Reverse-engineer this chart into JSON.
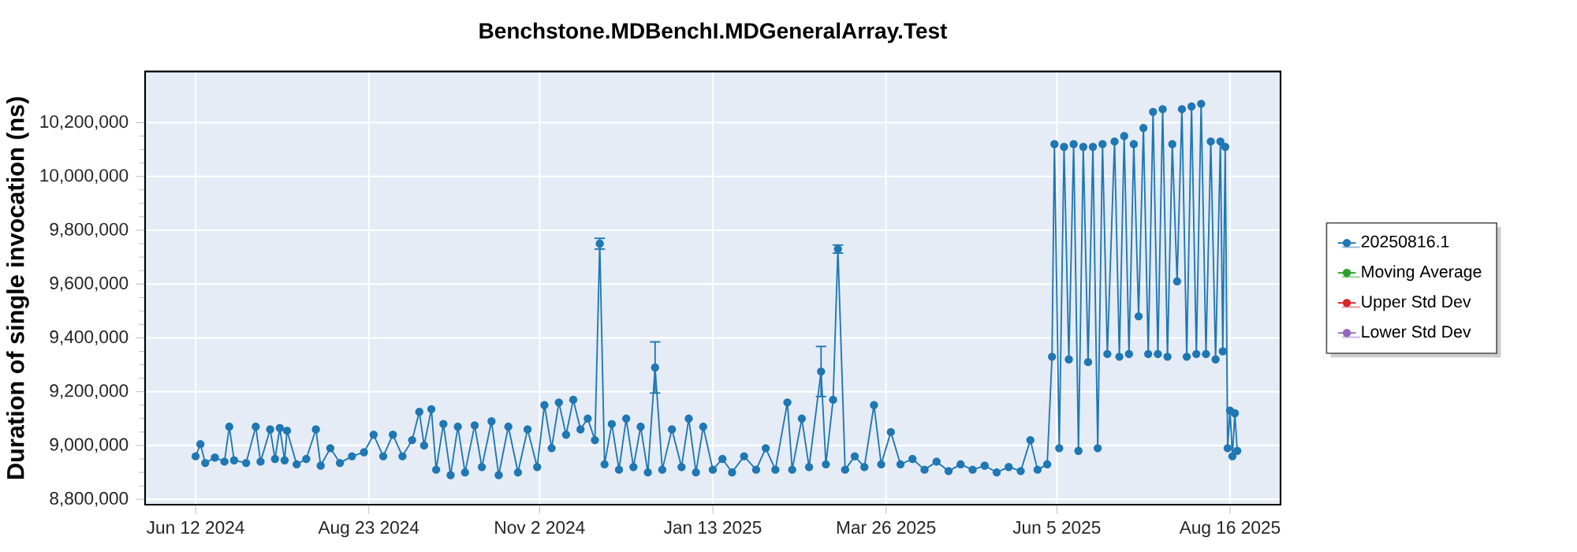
{
  "chart_data": {
    "type": "line",
    "title": "Benchstone.MDBenchI.MDGeneralArray.Test",
    "ylabel": "Duration of single invocation (ns)",
    "x": [
      "2024-06-12",
      "2024-06-14",
      "2024-06-16",
      "2024-06-20",
      "2024-06-24",
      "2024-06-26",
      "2024-06-28",
      "2024-07-03",
      "2024-07-07",
      "2024-07-09",
      "2024-07-13",
      "2024-07-15",
      "2024-07-17",
      "2024-07-19",
      "2024-07-20",
      "2024-07-24",
      "2024-07-28",
      "2024-08-01",
      "2024-08-03",
      "2024-08-07",
      "2024-08-11",
      "2024-08-16",
      "2024-08-21",
      "2024-08-25",
      "2024-08-29",
      "2024-09-02",
      "2024-09-06",
      "2024-09-10",
      "2024-09-13",
      "2024-09-15",
      "2024-09-18",
      "2024-09-20",
      "2024-09-23",
      "2024-09-26",
      "2024-09-29",
      "2024-10-02",
      "2024-10-06",
      "2024-10-09",
      "2024-10-13",
      "2024-10-16",
      "2024-10-20",
      "2024-10-24",
      "2024-10-28",
      "2024-11-01",
      "2024-11-04",
      "2024-11-07",
      "2024-11-10",
      "2024-11-13",
      "2024-11-16",
      "2024-11-19",
      "2024-11-22",
      "2024-11-25",
      "2024-11-27",
      "2024-11-29",
      "2024-12-02",
      "2024-12-05",
      "2024-12-08",
      "2024-12-11",
      "2024-12-14",
      "2024-12-17",
      "2024-12-20",
      "2024-12-23",
      "2024-12-27",
      "2024-12-31",
      "2025-01-03",
      "2025-01-06",
      "2025-01-09",
      "2025-01-13",
      "2025-01-17",
      "2025-01-21",
      "2025-01-26",
      "2025-01-31",
      "2025-02-04",
      "2025-02-08",
      "2025-02-13",
      "2025-02-15",
      "2025-02-19",
      "2025-02-22",
      "2025-02-27",
      "2025-03-01",
      "2025-03-04",
      "2025-03-06",
      "2025-03-09",
      "2025-03-13",
      "2025-03-17",
      "2025-03-21",
      "2025-03-24",
      "2025-03-28",
      "2025-04-01",
      "2025-04-06",
      "2025-04-11",
      "2025-04-16",
      "2025-04-21",
      "2025-04-26",
      "2025-05-01",
      "2025-05-06",
      "2025-05-11",
      "2025-05-16",
      "2025-05-21",
      "2025-05-25",
      "2025-05-28",
      "2025-06-01",
      "2025-06-03",
      "2025-06-04",
      "2025-06-06",
      "2025-06-08",
      "2025-06-10",
      "2025-06-12",
      "2025-06-14",
      "2025-06-16",
      "2025-06-18",
      "2025-06-20",
      "2025-06-22",
      "2025-06-24",
      "2025-06-26",
      "2025-06-29",
      "2025-07-01",
      "2025-07-03",
      "2025-07-05",
      "2025-07-07",
      "2025-07-09",
      "2025-07-11",
      "2025-07-13",
      "2025-07-15",
      "2025-07-17",
      "2025-07-19",
      "2025-07-21",
      "2025-07-23",
      "2025-07-25",
      "2025-07-27",
      "2025-07-29",
      "2025-07-31",
      "2025-08-02",
      "2025-08-04",
      "2025-08-06",
      "2025-08-08",
      "2025-08-10",
      "2025-08-12",
      "2025-08-13",
      "2025-08-14",
      "2025-08-15",
      "2025-08-16",
      "2025-08-17",
      "2025-08-18",
      "2025-08-19"
    ],
    "series": [
      {
        "name": "20250816.1",
        "color": "#1f77b4",
        "values": [
          8960000,
          9005000,
          8935000,
          8955000,
          8940000,
          9070000,
          8945000,
          8935000,
          9070000,
          8940000,
          9060000,
          8950000,
          9065000,
          8945000,
          9055000,
          8930000,
          8950000,
          9060000,
          8925000,
          8990000,
          8935000,
          8960000,
          8975000,
          9040000,
          8960000,
          9040000,
          8960000,
          9020000,
          9125000,
          9000000,
          9135000,
          8910000,
          9080000,
          8890000,
          9070000,
          8900000,
          9075000,
          8920000,
          9090000,
          8890000,
          9070000,
          8900000,
          9060000,
          8920000,
          9150000,
          8990000,
          9160000,
          9040000,
          9170000,
          9060000,
          9100000,
          9020000,
          9750000,
          8930000,
          9080000,
          8910000,
          9100000,
          8920000,
          9070000,
          8900000,
          9290000,
          8910000,
          9060000,
          8920000,
          9100000,
          8900000,
          9070000,
          8910000,
          8950000,
          8900000,
          8960000,
          8910000,
          8990000,
          8910000,
          9160000,
          8910000,
          9100000,
          8920000,
          9275000,
          8930000,
          9170000,
          9730000,
          8910000,
          8960000,
          8920000,
          9150000,
          8930000,
          9050000,
          8930000,
          8950000,
          8910000,
          8940000,
          8905000,
          8930000,
          8910000,
          8925000,
          8900000,
          8920000,
          8905000,
          9020000,
          8910000,
          8930000,
          9330000,
          10120000,
          8990000,
          10110000,
          9320000,
          10120000,
          8980000,
          10110000,
          9310000,
          10110000,
          8990000,
          10120000,
          9340000,
          10130000,
          9330000,
          10150000,
          9340000,
          10120000,
          9480000,
          10180000,
          9340000,
          10240000,
          9340000,
          10250000,
          9330000,
          10120000,
          9610000,
          10250000,
          9330000,
          10260000,
          9340000,
          10270000,
          9340000,
          10130000,
          9320000,
          10130000,
          9350000,
          10110000,
          8990000,
          9130000,
          8960000,
          9120000,
          8980000
        ],
        "errors": [
          null,
          null,
          null,
          null,
          null,
          null,
          null,
          null,
          null,
          null,
          null,
          null,
          null,
          null,
          null,
          null,
          null,
          null,
          null,
          null,
          null,
          null,
          null,
          null,
          null,
          null,
          null,
          null,
          null,
          null,
          null,
          null,
          null,
          null,
          null,
          null,
          null,
          null,
          null,
          null,
          null,
          null,
          null,
          null,
          null,
          null,
          null,
          null,
          null,
          null,
          null,
          null,
          20000,
          null,
          null,
          null,
          null,
          null,
          null,
          null,
          95000,
          null,
          null,
          null,
          null,
          null,
          null,
          null,
          null,
          null,
          null,
          null,
          null,
          null,
          null,
          null,
          null,
          null,
          93000,
          null,
          null,
          15000,
          null,
          null,
          null,
          null,
          null,
          null,
          null,
          null,
          null,
          null,
          null,
          null,
          null,
          null,
          null,
          null,
          null,
          null,
          null,
          null,
          null,
          null,
          null,
          null,
          null,
          null,
          null,
          null,
          null,
          null,
          null,
          null,
          null,
          null,
          null,
          null,
          null,
          null,
          null,
          null,
          null,
          null,
          null,
          null,
          null,
          null,
          null,
          null,
          null,
          null,
          null,
          null,
          null,
          null,
          null,
          null,
          null,
          null,
          null,
          null,
          null,
          null,
          null
        ]
      },
      {
        "name": "Moving Average",
        "color": "#2ca02c",
        "values": [
          null,
          null,
          null,
          null,
          null,
          null,
          null,
          null,
          null,
          null,
          null,
          null,
          null,
          null,
          null,
          null,
          null,
          null,
          null,
          null,
          null,
          null,
          null,
          null,
          null,
          null,
          null,
          null,
          null,
          null,
          null,
          null,
          null,
          null,
          null,
          null,
          null,
          null,
          null,
          null,
          null,
          null,
          null,
          null,
          null,
          null,
          null,
          null,
          null,
          null,
          null,
          null,
          null,
          null,
          null,
          null,
          null,
          null,
          null,
          null,
          null,
          null,
          null,
          null,
          null,
          null,
          null,
          null,
          null,
          null,
          null,
          null,
          null,
          null,
          null,
          null,
          null,
          null,
          null,
          null,
          null,
          null,
          null,
          null,
          null,
          null,
          null,
          null,
          null,
          null,
          null,
          null,
          null,
          null,
          null,
          null,
          null,
          null,
          null,
          null,
          null,
          null,
          null,
          null,
          null,
          null,
          null,
          null,
          null,
          null,
          null,
          null,
          null,
          null,
          null,
          null,
          null,
          null,
          null,
          null,
          null,
          null,
          null,
          null,
          null,
          null,
          null,
          null,
          null,
          null,
          null,
          null,
          null,
          null,
          null,
          null,
          null,
          null,
          null,
          null,
          null,
          null,
          null,
          null,
          null
        ]
      },
      {
        "name": "Upper Std Dev",
        "color": "#d62728",
        "values": [
          null,
          null,
          null,
          null,
          null,
          null,
          null,
          null,
          null,
          null,
          null,
          null,
          null,
          null,
          null,
          null,
          null,
          null,
          null,
          null,
          null,
          null,
          null,
          null,
          null,
          null,
          null,
          null,
          null,
          null,
          null,
          null,
          null,
          null,
          null,
          null,
          null,
          null,
          null,
          null,
          null,
          null,
          null,
          null,
          null,
          null,
          null,
          null,
          null,
          null,
          null,
          null,
          null,
          null,
          null,
          null,
          null,
          null,
          null,
          null,
          null,
          null,
          null,
          null,
          null,
          null,
          null,
          null,
          null,
          null,
          null,
          null,
          null,
          null,
          null,
          null,
          null,
          null,
          null,
          null,
          null,
          null,
          null,
          null,
          null,
          null,
          null,
          null,
          null,
          null,
          null,
          null,
          null,
          null,
          null,
          null,
          null,
          null,
          null,
          null,
          null,
          null,
          null,
          null,
          null,
          null,
          null,
          null,
          null,
          null,
          null,
          null,
          null,
          null,
          null,
          null,
          null,
          null,
          null,
          null,
          null,
          null,
          null,
          null,
          null,
          null,
          null,
          null,
          null,
          null,
          null,
          null,
          null,
          null,
          null,
          null,
          null,
          null,
          null,
          null,
          null,
          null,
          null,
          null,
          null
        ]
      },
      {
        "name": "Lower Std Dev",
        "color": "#9467bd",
        "values": [
          null,
          null,
          null,
          null,
          null,
          null,
          null,
          null,
          null,
          null,
          null,
          null,
          null,
          null,
          null,
          null,
          null,
          null,
          null,
          null,
          null,
          null,
          null,
          null,
          null,
          null,
          null,
          null,
          null,
          null,
          null,
          null,
          null,
          null,
          null,
          null,
          null,
          null,
          null,
          null,
          null,
          null,
          null,
          null,
          null,
          null,
          null,
          null,
          null,
          null,
          null,
          null,
          null,
          null,
          null,
          null,
          null,
          null,
          null,
          null,
          null,
          null,
          null,
          null,
          null,
          null,
          null,
          null,
          null,
          null,
          null,
          null,
          null,
          null,
          null,
          null,
          null,
          null,
          null,
          null,
          null,
          null,
          null,
          null,
          null,
          null,
          null,
          null,
          null,
          null,
          null,
          null,
          null,
          null,
          null,
          null,
          null,
          null,
          null,
          null,
          null,
          null,
          null,
          null,
          null,
          null,
          null,
          null,
          null,
          null,
          null,
          null,
          null,
          null,
          null,
          null,
          null,
          null,
          null,
          null,
          null,
          null,
          null,
          null,
          null,
          null,
          null,
          null,
          null,
          null,
          null,
          null,
          null,
          null,
          null,
          null,
          null,
          null,
          null,
          null,
          null,
          null,
          null,
          null,
          null
        ]
      }
    ],
    "xlim": [
      "2024-05-22",
      "2025-09-06"
    ],
    "xticks": [
      {
        "value": "2024-06-12",
        "label": "Jun 12 2024"
      },
      {
        "value": "2024-08-23",
        "label": "Aug 23 2024"
      },
      {
        "value": "2024-11-02",
        "label": "Nov 2 2024"
      },
      {
        "value": "2025-01-13",
        "label": "Jan 13 2025"
      },
      {
        "value": "2025-03-26",
        "label": "Mar 26 2025"
      },
      {
        "value": "2025-06-05",
        "label": "Jun 5 2025"
      },
      {
        "value": "2025-08-16",
        "label": "Aug 16 2025"
      }
    ],
    "ylim": [
      8780000,
      10390000
    ],
    "yticks": [
      {
        "value": 8800000,
        "label": "8,800,000"
      },
      {
        "value": 9000000,
        "label": "9,000,000"
      },
      {
        "value": 9200000,
        "label": "9,200,000"
      },
      {
        "value": 9400000,
        "label": "9,400,000"
      },
      {
        "value": 9600000,
        "label": "9,600,000"
      },
      {
        "value": 9800000,
        "label": "9,800,000"
      },
      {
        "value": 10000000,
        "label": "10,000,000"
      },
      {
        "value": 10200000,
        "label": "10,200,000"
      }
    ],
    "grid": true,
    "legend": "right",
    "marker": "circle",
    "line_style": "solid"
  }
}
